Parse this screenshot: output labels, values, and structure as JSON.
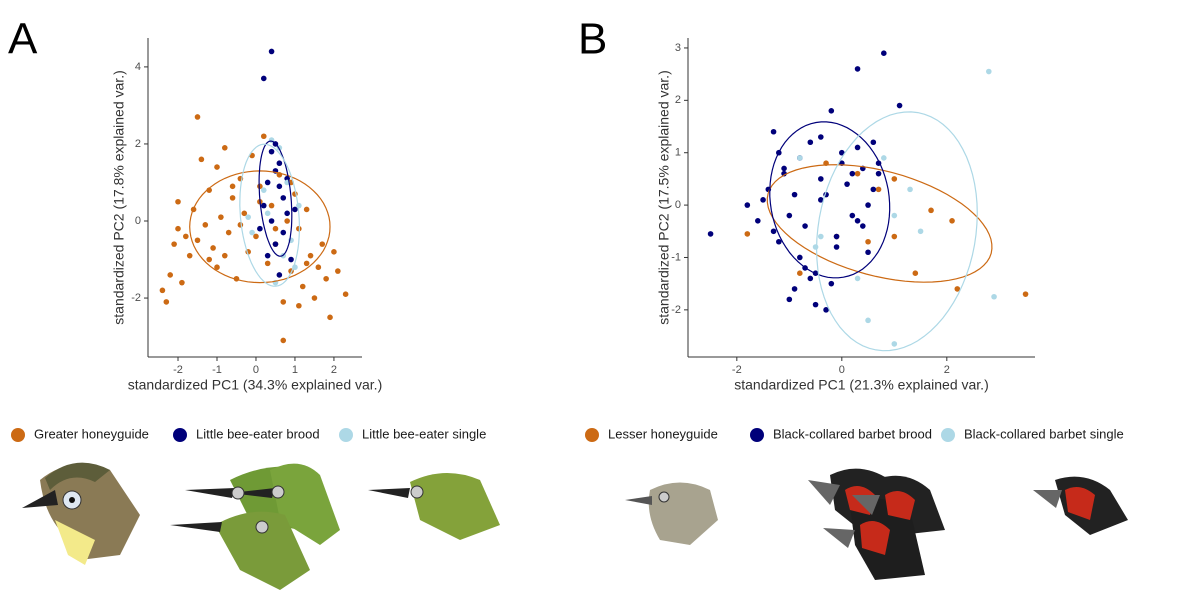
{
  "chart_data": [
    {
      "type": "scatter",
      "panel": "A",
      "x_label": "standardized PC1 (34.3% explained var.)",
      "y_label": "standardized PC2 (17.8% explained var.)",
      "xlim": [
        -2.77,
        2.72
      ],
      "ylim": [
        -3.53,
        4.75
      ],
      "xticks": [
        -2,
        -1,
        0,
        1,
        2
      ],
      "yticks": [
        -2,
        0,
        2,
        4
      ],
      "series": [
        {
          "name": "Greater honeyguide",
          "color": "#cc6a14",
          "x": [
            -2.4,
            -2.3,
            -2.2,
            -2.1,
            -2.0,
            -1.9,
            -1.8,
            -1.7,
            -1.6,
            -1.5,
            -1.5,
            -1.4,
            -1.3,
            -1.2,
            -1.1,
            -1.0,
            -1.0,
            -0.9,
            -0.8,
            -0.7,
            -0.6,
            -0.5,
            -0.4,
            -0.3,
            -0.2,
            -0.1,
            0.0,
            0.1,
            0.2,
            0.3,
            0.4,
            0.5,
            0.6,
            0.7,
            0.8,
            0.9,
            1.0,
            1.1,
            1.2,
            1.3,
            1.4,
            1.5,
            1.6,
            1.7,
            1.8,
            1.9,
            2.0,
            2.1,
            2.3,
            -1.2,
            -0.8,
            -0.4,
            0.1,
            0.5,
            0.9,
            1.3,
            -2.0,
            -0.6,
            0.7,
            1.1
          ],
          "values": [
            -1.8,
            -2.1,
            -1.4,
            -0.6,
            -0.2,
            -1.6,
            -0.4,
            -0.9,
            0.3,
            2.7,
            -0.5,
            1.6,
            -0.1,
            0.8,
            -0.7,
            1.4,
            -1.2,
            0.1,
            1.9,
            -0.3,
            0.6,
            -1.5,
            1.1,
            0.2,
            -0.8,
            1.7,
            -0.4,
            0.9,
            2.2,
            -1.1,
            0.4,
            -0.6,
            1.2,
            -2.1,
            0.0,
            -1.3,
            0.7,
            -0.2,
            -1.7,
            0.3,
            -0.9,
            -2.0,
            -1.2,
            -0.6,
            -1.5,
            -2.5,
            -0.8,
            -1.3,
            -1.9,
            -1.0,
            -0.9,
            -0.1,
            0.5,
            -0.2,
            1.0,
            -1.1,
            0.5,
            0.9,
            -3.1,
            -2.2
          ],
          "ellipse": {
            "center": [
              0.1,
              -0.15
            ],
            "radii": [
              1.8,
              1.45
            ],
            "angle": 0
          }
        },
        {
          "name": "Little bee-eater brood",
          "color": "#00007a",
          "x": [
            0.2,
            0.4,
            0.5,
            0.6,
            0.3,
            0.7,
            0.8,
            0.1,
            0.5,
            0.9,
            0.4,
            0.6,
            0.2,
            0.7,
            0.3,
            0.5,
            0.8,
            0.6,
            0.4,
            1.0
          ],
          "values": [
            3.7,
            4.4,
            2.0,
            1.5,
            1.0,
            0.6,
            0.2,
            -0.2,
            -0.6,
            -1.0,
            1.8,
            0.9,
            0.4,
            -0.3,
            -0.9,
            1.3,
            1.1,
            -1.4,
            0.0,
            0.3
          ],
          "ellipse": {
            "center": [
              0.5,
              0.58
            ],
            "radii": [
              1.5,
              0.4
            ],
            "angle": 95
          }
        },
        {
          "name": "Little bee-eater single",
          "color": "#add8e6",
          "x": [
            0.6,
            0.8,
            0.3,
            0.9,
            -0.1,
            1.0,
            0.5,
            0.2,
            0.7,
            1.1,
            0.4,
            -0.2
          ],
          "values": [
            1.9,
            1.0,
            0.2,
            -0.5,
            -0.3,
            -1.2,
            -1.6,
            0.8,
            -0.9,
            0.4,
            2.1,
            0.1
          ],
          "ellipse": {
            "center": [
              0.35,
              0.15
            ],
            "radii": [
              1.85,
              0.75
            ],
            "angle": 95
          }
        }
      ]
    },
    {
      "type": "scatter",
      "panel": "B",
      "x_label": "standardized PC1 (21.3% explained var.)",
      "y_label": "standardized PC2 (17.5% explained var.)",
      "xlim": [
        -2.93,
        3.68
      ],
      "ylim": [
        -2.9,
        3.19
      ],
      "xticks": [
        -2,
        0,
        2
      ],
      "yticks": [
        -2,
        -1,
        0,
        1,
        2,
        3
      ],
      "series": [
        {
          "name": "Lesser honeyguide",
          "color": "#cc6a14",
          "x": [
            -1.8,
            -0.3,
            -0.1,
            0.3,
            0.5,
            1.0,
            1.0,
            1.4,
            1.7,
            2.1,
            2.2,
            3.5,
            -0.8,
            0.7
          ],
          "values": [
            -0.55,
            0.8,
            -0.6,
            0.6,
            -0.7,
            -0.6,
            0.5,
            -1.3,
            -0.1,
            -0.3,
            -1.6,
            -1.7,
            -1.3,
            0.3
          ],
          "ellipse": {
            "center": [
              0.72,
              -0.35
            ],
            "radii": [
              2.2,
              1.0
            ],
            "angle": -15
          }
        },
        {
          "name": "Black-collared barbet brood",
          "color": "#00007a",
          "x": [
            -2.5,
            -1.8,
            -1.6,
            -1.5,
            -1.4,
            -1.3,
            -1.2,
            -1.1,
            -1.0,
            -0.9,
            -0.8,
            -0.7,
            -0.6,
            -0.5,
            -0.4,
            -0.3,
            -0.2,
            -0.1,
            0.0,
            0.1,
            0.2,
            0.3,
            0.4,
            0.5,
            0.6,
            0.7,
            0.8,
            -1.3,
            -1.0,
            -0.7,
            -0.4,
            -0.1,
            0.2,
            0.5,
            -1.2,
            -0.9,
            -0.6,
            -0.3,
            0.0,
            0.3,
            0.6,
            -0.8,
            -0.5,
            -0.2,
            -0.4,
            0.7,
            1.1,
            -1.1,
            0.4,
            0.3
          ],
          "values": [
            -0.55,
            0.0,
            -0.3,
            0.1,
            0.3,
            1.4,
            -0.7,
            0.6,
            -0.2,
            -1.6,
            0.9,
            -0.4,
            1.2,
            -1.9,
            0.5,
            0.2,
            1.8,
            -0.6,
            1.0,
            0.4,
            -0.2,
            1.1,
            0.7,
            -0.9,
            0.3,
            0.8,
            2.9,
            -0.5,
            -1.8,
            -1.2,
            1.3,
            -0.8,
            0.6,
            0.0,
            1.0,
            0.2,
            -1.4,
            -2.0,
            0.8,
            -0.3,
            1.2,
            -1.0,
            -1.3,
            -1.5,
            0.1,
            0.6,
            1.9,
            0.7,
            -0.4,
            2.6
          ],
          "ellipse": {
            "center": [
              -0.23,
              0.1
            ],
            "radii": [
              1.5,
              1.13
            ],
            "angle": 100
          }
        },
        {
          "name": "Black-collared barbet single",
          "color": "#add8e6",
          "x": [
            2.8,
            -0.8,
            -0.4,
            0.3,
            0.5,
            1.0,
            1.3,
            1.5,
            1.0,
            2.9,
            -0.5,
            0.8
          ],
          "values": [
            2.55,
            0.9,
            -0.6,
            -1.4,
            -2.2,
            -0.2,
            0.3,
            -0.5,
            -2.65,
            -1.75,
            -0.8,
            0.9
          ],
          "ellipse": {
            "center": [
              1.05,
              -0.5
            ],
            "radii": [
              2.3,
              1.5
            ],
            "angle": 80
          }
        }
      ]
    }
  ]
}
